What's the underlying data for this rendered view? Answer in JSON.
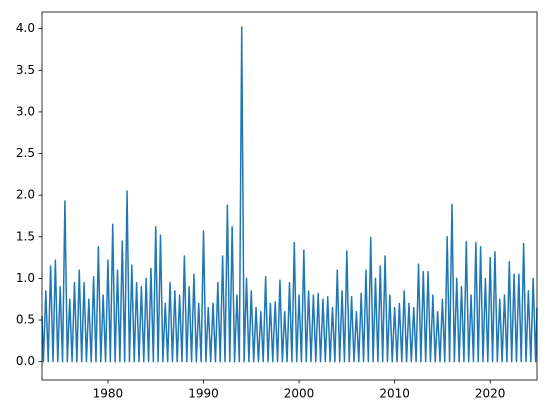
{
  "chart_data": {
    "type": "line",
    "x": [
      1973.1,
      1973.25,
      1973.5,
      1973.75,
      1974,
      1974.25,
      1974.5,
      1974.75,
      1975,
      1975.25,
      1975.5,
      1975.75,
      1976,
      1976.25,
      1976.5,
      1976.75,
      1977,
      1977.25,
      1977.5,
      1977.75,
      1978,
      1978.25,
      1978.5,
      1978.75,
      1979,
      1979.25,
      1979.5,
      1979.75,
      1980,
      1980.25,
      1980.5,
      1980.75,
      1981,
      1981.25,
      1981.5,
      1981.75,
      1982,
      1982.25,
      1982.5,
      1982.75,
      1983,
      1983.25,
      1983.5,
      1983.75,
      1984,
      1984.25,
      1984.5,
      1984.75,
      1985,
      1985.25,
      1985.5,
      1985.75,
      1986,
      1986.25,
      1986.5,
      1986.75,
      1987,
      1987.25,
      1987.5,
      1987.75,
      1988,
      1988.25,
      1988.5,
      1988.75,
      1989,
      1989.25,
      1989.5,
      1989.75,
      1990,
      1990.25,
      1990.5,
      1990.75,
      1991,
      1991.25,
      1991.5,
      1991.75,
      1992,
      1992.25,
      1992.5,
      1992.75,
      1993,
      1993.25,
      1993.5,
      1993.75,
      1994,
      1994.25,
      1994.5,
      1994.75,
      1995,
      1995.25,
      1995.5,
      1995.75,
      1996,
      1996.25,
      1996.5,
      1996.75,
      1997,
      1997.25,
      1997.5,
      1997.75,
      1998,
      1998.25,
      1998.5,
      1998.75,
      1999,
      1999.25,
      1999.5,
      1999.75,
      2000,
      2000.25,
      2000.5,
      2000.75,
      2001,
      2001.25,
      2001.5,
      2001.75,
      2002,
      2002.25,
      2002.5,
      2002.75,
      2003,
      2003.25,
      2003.5,
      2003.75,
      2004,
      2004.25,
      2004.5,
      2004.75,
      2005,
      2005.25,
      2005.5,
      2005.75,
      2006,
      2006.25,
      2006.5,
      2006.75,
      2007,
      2007.25,
      2007.5,
      2007.75,
      2008,
      2008.25,
      2008.5,
      2008.75,
      2009,
      2009.25,
      2009.5,
      2009.75,
      2010,
      2010.25,
      2010.5,
      2010.75,
      2011,
      2011.25,
      2011.5,
      2011.75,
      2012,
      2012.25,
      2012.5,
      2012.75,
      2013,
      2013.25,
      2013.5,
      2013.75,
      2014,
      2014.25,
      2014.5,
      2014.75,
      2015,
      2015.25,
      2015.5,
      2015.75,
      2016,
      2016.25,
      2016.5,
      2016.75,
      2017,
      2017.25,
      2017.5,
      2017.75,
      2018,
      2018.25,
      2018.5,
      2018.75,
      2019,
      2019.25,
      2019.5,
      2019.75,
      2020,
      2020.25,
      2020.5,
      2020.75,
      2021,
      2021.25,
      2021.5,
      2021.75,
      2022,
      2022.25,
      2022.5,
      2022.75,
      2023,
      2023.25,
      2023.5,
      2023.75,
      2024,
      2024.25,
      2024.5,
      2024.75,
      2024.9
    ],
    "series": [
      {
        "color": "#1f77b4",
        "values": [
          0.55,
          0,
          0.85,
          0,
          1.15,
          0,
          1.22,
          0,
          0.9,
          0,
          1.93,
          0,
          0.75,
          0,
          0.95,
          0,
          1.1,
          0,
          0.95,
          0,
          0.75,
          0,
          1.02,
          0,
          1.38,
          0,
          0.8,
          0,
          1.22,
          0,
          1.65,
          0,
          1.1,
          0,
          1.45,
          0,
          2.05,
          0,
          1.16,
          0,
          0.95,
          0,
          0.9,
          0,
          1.0,
          0,
          1.12,
          0,
          1.62,
          0,
          1.52,
          0,
          0.7,
          0,
          0.95,
          0,
          0.85,
          0,
          0.8,
          0,
          1.27,
          0,
          0.9,
          0,
          1.05,
          0,
          0.7,
          0,
          1.57,
          0,
          0.65,
          0,
          0.7,
          0,
          0.95,
          0,
          1.27,
          0,
          1.88,
          0,
          1.62,
          0,
          0.8,
          0,
          4.02,
          0,
          1.0,
          0,
          0.85,
          0,
          0.65,
          0,
          0.6,
          0,
          1.02,
          0,
          0.7,
          0,
          0.72,
          0,
          0.98,
          0,
          0.6,
          0,
          0.95,
          0,
          1.43,
          0,
          0.8,
          0,
          1.34,
          0,
          0.85,
          0,
          0.8,
          0,
          0.82,
          0,
          0.75,
          0,
          0.78,
          0,
          0.65,
          0,
          1.1,
          0,
          0.85,
          0,
          1.33,
          0,
          0.78,
          0,
          0.6,
          0,
          0.82,
          0,
          1.1,
          0,
          1.49,
          0,
          1.0,
          0,
          1.15,
          0,
          1.27,
          0,
          0.8,
          0,
          0.65,
          0,
          0.7,
          0,
          0.85,
          0,
          0.7,
          0,
          0.65,
          0,
          1.17,
          0,
          1.08,
          0,
          1.08,
          0,
          0.8,
          0,
          0.6,
          0,
          0.75,
          0,
          1.5,
          0,
          1.89,
          0,
          1.0,
          0,
          0.9,
          0,
          1.44,
          0,
          0.8,
          0,
          1.43,
          0,
          1.38,
          0,
          1.0,
          0,
          1.25,
          0,
          1.32,
          0,
          0.75,
          0,
          0.8,
          0,
          1.2,
          0,
          1.05,
          0,
          1.05,
          0,
          1.42,
          0,
          0.85,
          0,
          1.0,
          0,
          0.65
        ]
      }
    ],
    "xlim": [
      1973.1,
      2024.9
    ],
    "xticks": [
      1980,
      1990,
      2000,
      2010,
      2020
    ],
    "ylim": [
      -0.22,
      4.2
    ],
    "yticks": [
      {
        "value": 0,
        "label": "0.0"
      },
      {
        "value": 0.5,
        "label": "0.5"
      },
      {
        "value": 1,
        "label": "1.0"
      },
      {
        "value": 1.5,
        "label": "1.5"
      },
      {
        "value": 2,
        "label": "2.0"
      },
      {
        "value": 2.5,
        "label": "2.5"
      },
      {
        "value": 3,
        "label": "3.0"
      },
      {
        "value": 3.5,
        "label": "3.5"
      },
      {
        "value": 4,
        "label": "4.0"
      }
    ]
  }
}
